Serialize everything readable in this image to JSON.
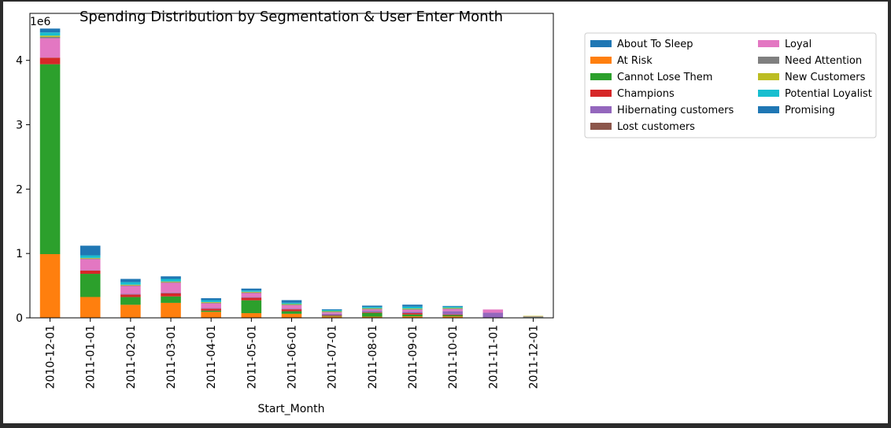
{
  "chart_data": {
    "type": "bar",
    "stacked": true,
    "title": "Spending Distribution by Segmentation & User Enter Month",
    "xlabel": "Start_Month",
    "ylabel": "",
    "y_scale_note": "1e6",
    "ylim": [
      0,
      4.73
    ],
    "yticks": [
      0,
      1,
      2,
      3,
      4
    ],
    "categories": [
      "2010-12-01",
      "2011-01-01",
      "2011-02-01",
      "2011-03-01",
      "2011-04-01",
      "2011-05-01",
      "2011-06-01",
      "2011-07-01",
      "2011-08-01",
      "2011-09-01",
      "2011-10-01",
      "2011-11-01",
      "2011-12-01"
    ],
    "legend": {
      "placement": "outside-right",
      "columns": 2
    },
    "series": [
      {
        "name": "About To Sleep",
        "color": "#1f77b4",
        "values": [
          0.0,
          0.004,
          0.003,
          0.003,
          0.003,
          0.003,
          0.003,
          0.002,
          0.003,
          0.003,
          0.003,
          0.0,
          0.0
        ]
      },
      {
        "name": "At Risk",
        "color": "#ff7f0e",
        "values": [
          0.99,
          0.32,
          0.2,
          0.23,
          0.09,
          0.07,
          0.06,
          0.02,
          0.015,
          0.02,
          0.02,
          0.0,
          0.0
        ]
      },
      {
        "name": "Cannot Lose Them",
        "color": "#2ca02c",
        "values": [
          2.95,
          0.36,
          0.12,
          0.1,
          0.02,
          0.2,
          0.04,
          0.01,
          0.06,
          0.03,
          0.02,
          0.0,
          0.01
        ]
      },
      {
        "name": "Champions",
        "color": "#d62728",
        "values": [
          0.1,
          0.05,
          0.04,
          0.05,
          0.03,
          0.04,
          0.03,
          0.01,
          0.01,
          0.02,
          0.01,
          0.0,
          0.0
        ]
      },
      {
        "name": "Hibernating customers",
        "color": "#9467bd",
        "values": [
          0.002,
          0.005,
          0.01,
          0.01,
          0.01,
          0.01,
          0.01,
          0.02,
          0.02,
          0.02,
          0.05,
          0.08,
          0.01
        ]
      },
      {
        "name": "Lost customers",
        "color": "#8c564b",
        "values": [
          0.002,
          0.002,
          0.002,
          0.002,
          0.002,
          0.002,
          0.002,
          0.002,
          0.002,
          0.002,
          0.002,
          0.0,
          0.0
        ]
      },
      {
        "name": "Loyal",
        "color": "#e377c2",
        "values": [
          0.3,
          0.17,
          0.12,
          0.15,
          0.07,
          0.06,
          0.05,
          0.02,
          0.02,
          0.03,
          0.03,
          0.05,
          0.0
        ]
      },
      {
        "name": "Need Attention",
        "color": "#7f7f7f",
        "values": [
          0.02,
          0.01,
          0.01,
          0.01,
          0.01,
          0.01,
          0.01,
          0.01,
          0.01,
          0.01,
          0.01,
          0.0,
          0.0
        ]
      },
      {
        "name": "New Customers",
        "color": "#bcbd22",
        "values": [
          0.02,
          0.01,
          0.01,
          0.01,
          0.01,
          0.01,
          0.01,
          0.01,
          0.01,
          0.01,
          0.01,
          0.0,
          0.01
        ]
      },
      {
        "name": "Potential Loyalist",
        "color": "#17becf",
        "values": [
          0.05,
          0.04,
          0.04,
          0.04,
          0.03,
          0.02,
          0.02,
          0.02,
          0.02,
          0.03,
          0.02,
          0.0,
          0.0
        ]
      },
      {
        "name": "Promising",
        "color": "#1f77b4",
        "values": [
          0.06,
          0.15,
          0.05,
          0.04,
          0.03,
          0.03,
          0.04,
          0.01,
          0.02,
          0.03,
          0.01,
          0.0,
          0.0
        ]
      }
    ]
  }
}
